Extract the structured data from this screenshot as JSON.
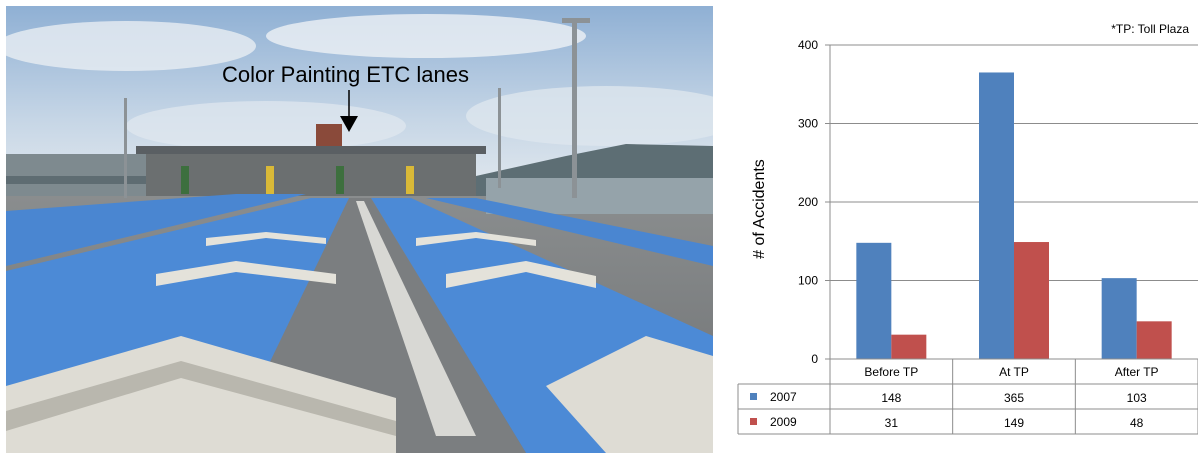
{
  "photo": {
    "caption": "Color Painting ETC lanes"
  },
  "chart_data": {
    "type": "bar",
    "note": "*TP: Toll Plaza",
    "ylabel": "# of Accidents",
    "ylim": [
      0,
      400
    ],
    "yticks": [
      "0",
      "100",
      "200",
      "300",
      "400"
    ],
    "categories": [
      "Before TP",
      "At TP",
      "After TP"
    ],
    "series": [
      {
        "name": "2007",
        "color": "#4f81bd",
        "values": [
          148,
          365,
          103
        ],
        "labels": [
          "148",
          "365",
          "103"
        ]
      },
      {
        "name": "2009",
        "color": "#c0504d",
        "values": [
          31,
          149,
          48
        ],
        "labels": [
          "31",
          "149",
          "48"
        ]
      }
    ],
    "grid": true,
    "legend": "data-table"
  }
}
